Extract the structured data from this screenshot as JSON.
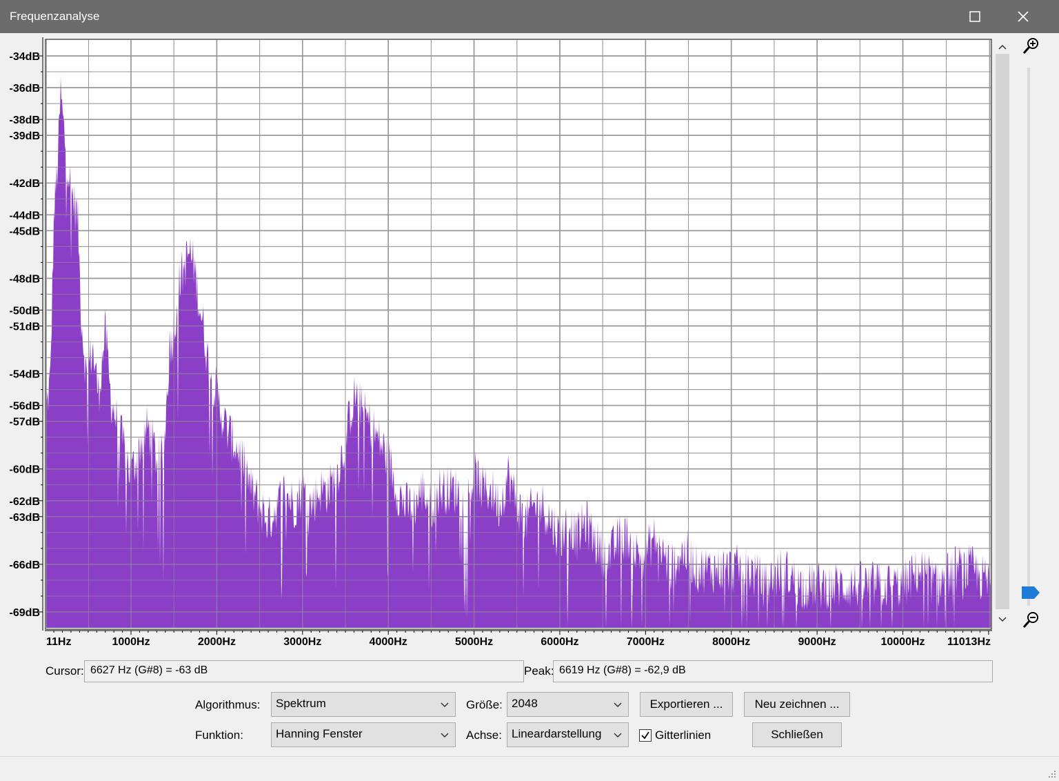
{
  "window": {
    "title": "Frequenzanalyse"
  },
  "chart_data": {
    "type": "area",
    "xlabel": "",
    "ylabel": "",
    "xlim": [
      11,
      11025
    ],
    "ylim": [
      -70,
      -33
    ],
    "x_ticks": [
      "11Hz",
      "1000Hz",
      "2000Hz",
      "3000Hz",
      "4000Hz",
      "5000Hz",
      "6000Hz",
      "7000Hz",
      "8000Hz",
      "9000Hz",
      "10000Hz",
      "11013Hz"
    ],
    "x_tick_values": [
      11,
      1000,
      2000,
      3000,
      4000,
      5000,
      6000,
      7000,
      8000,
      9000,
      10000,
      11013
    ],
    "y_ticks": [
      "-34dB",
      "-36dB",
      "-38dB",
      "-39dB",
      "-42dB",
      "-44dB",
      "-45dB",
      "-48dB",
      "-50dB",
      "-51dB",
      "-54dB",
      "-56dB",
      "-57dB",
      "-60dB",
      "-62dB",
      "-63dB",
      "-66dB",
      "-69dB"
    ],
    "y_tick_values": [
      -34,
      -36,
      -38,
      -39,
      -42,
      -44,
      -45,
      -48,
      -50,
      -51,
      -54,
      -56,
      -57,
      -60,
      -62,
      -63,
      -66,
      -69
    ],
    "grid": true,
    "fill_color": "#8a3fc6",
    "envelope_x": [
      11,
      60,
      100,
      150,
      180,
      210,
      250,
      300,
      380,
      420,
      480,
      550,
      620,
      700,
      760,
      800,
      850,
      900,
      950,
      1000,
      1060,
      1120,
      1200,
      1300,
      1380,
      1450,
      1500,
      1560,
      1620,
      1680,
      1740,
      1790,
      1850,
      1900,
      1950,
      2000,
      2100,
      2200,
      2300,
      2400,
      2500,
      2600,
      2700,
      2800,
      2900,
      3000,
      3100,
      3200,
      3300,
      3400,
      3500,
      3560,
      3620,
      3700,
      3800,
      3900,
      4000,
      4100,
      4200,
      4300,
      4400,
      4500,
      4600,
      4700,
      4800,
      4900,
      5000,
      5100,
      5200,
      5300,
      5400,
      5500,
      5600,
      5700,
      5800,
      5900,
      6000,
      6100,
      6200,
      6300,
      6400,
      6500,
      6600,
      6700,
      6800,
      6900,
      7000,
      7100,
      7200,
      7300,
      7400,
      7500,
      7600,
      7700,
      7800,
      7900,
      8000,
      8200,
      8400,
      8600,
      8800,
      9000,
      9200,
      9400,
      9600,
      9800,
      10000,
      10200,
      10400,
      10600,
      10800,
      11025
    ],
    "envelope_y": [
      -56,
      -54,
      -44,
      -40,
      -36,
      -38,
      -40,
      -42,
      -44,
      -50,
      -54,
      -52,
      -55,
      -51,
      -55,
      -56,
      -57,
      -58,
      -59,
      -60,
      -59,
      -58,
      -57,
      -59,
      -59,
      -52,
      -51,
      -48,
      -47,
      -46,
      -47,
      -49,
      -51,
      -53,
      -54,
      -55,
      -57,
      -58,
      -59,
      -61,
      -62,
      -63,
      -62,
      -61,
      -62,
      -61,
      -62,
      -61,
      -61,
      -60,
      -58,
      -56,
      -55,
      -56,
      -57,
      -58,
      -59,
      -61,
      -62,
      -62,
      -61,
      -62,
      -61,
      -61,
      -61,
      -62,
      -60,
      -61,
      -61,
      -62,
      -60,
      -62,
      -63,
      -62,
      -62,
      -63,
      -64,
      -63,
      -64,
      -63,
      -64,
      -65,
      -65,
      -64,
      -64,
      -65,
      -65,
      -64,
      -65,
      -66,
      -65,
      -65,
      -66,
      -66,
      -66,
      -66,
      -66,
      -66,
      -67,
      -66,
      -67,
      -67,
      -67,
      -67,
      -67,
      -67,
      -67,
      -66,
      -67,
      -66,
      -66,
      -67
    ]
  },
  "cursor": {
    "label": "Cursor:",
    "value": "6627 Hz (G#8) = -63 dB"
  },
  "peak": {
    "label": "Peak:",
    "value": "6619 Hz (G#8) = -62,9 dB"
  },
  "controls": {
    "algorithm_label": "Algorithmus:",
    "algorithm_value": "Spektrum",
    "size_label": "Größe:",
    "size_value": "2048",
    "export_button": "Exportieren ...",
    "redraw_button": "Neu zeichnen ...",
    "function_label": "Funktion:",
    "function_value": "Hanning Fenster",
    "axis_label": "Achse:",
    "axis_value": "Lineardarstellung",
    "grid_checkbox": "Gitterlinien",
    "grid_checked": true,
    "close_button": "Schließen"
  }
}
